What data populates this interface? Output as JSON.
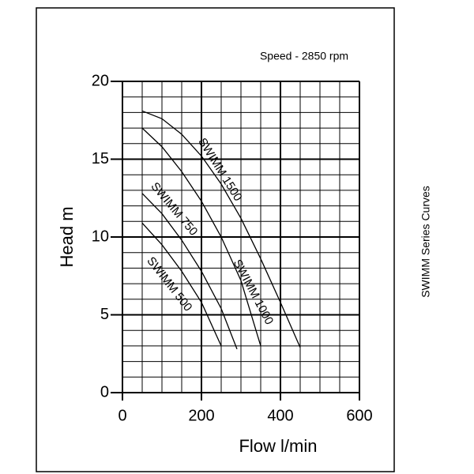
{
  "chart_data": {
    "type": "line",
    "subtitle": "Speed - 2850 rpm",
    "side_title": "SWIMM Series Curves",
    "x_label": "Flow l/min",
    "y_label": "Head m",
    "xlim": [
      0,
      600
    ],
    "xticks": [
      0,
      200,
      400,
      600
    ],
    "ylim": [
      0,
      20
    ],
    "yticks": [
      0,
      5,
      10,
      15,
      20
    ],
    "grid": true,
    "series": [
      {
        "name": "SWIMM 1500",
        "color": "#000000",
        "x": [
          50,
          100,
          150,
          200,
          250,
          300,
          350,
          400,
          450
        ],
        "values": [
          18.1,
          17.6,
          16.6,
          15.2,
          13.4,
          11.2,
          8.6,
          5.8,
          2.9
        ]
      },
      {
        "name": "SWIMM 1000",
        "color": "#000000",
        "x": [
          50,
          100,
          150,
          200,
          250,
          300,
          350
        ],
        "values": [
          17,
          15.8,
          14.2,
          12.3,
          10,
          7.2,
          3
        ]
      },
      {
        "name": "SWIMM 750",
        "color": "#000000",
        "x": [
          50,
          100,
          150,
          200,
          250,
          290
        ],
        "values": [
          12.8,
          11.5,
          9.8,
          7.8,
          5.4,
          2.8
        ]
      },
      {
        "name": "SWIMM 500",
        "color": "#000000",
        "x": [
          50,
          100,
          150,
          200,
          250
        ],
        "values": [
          10.9,
          9.5,
          7.8,
          5.8,
          3
        ]
      }
    ]
  }
}
